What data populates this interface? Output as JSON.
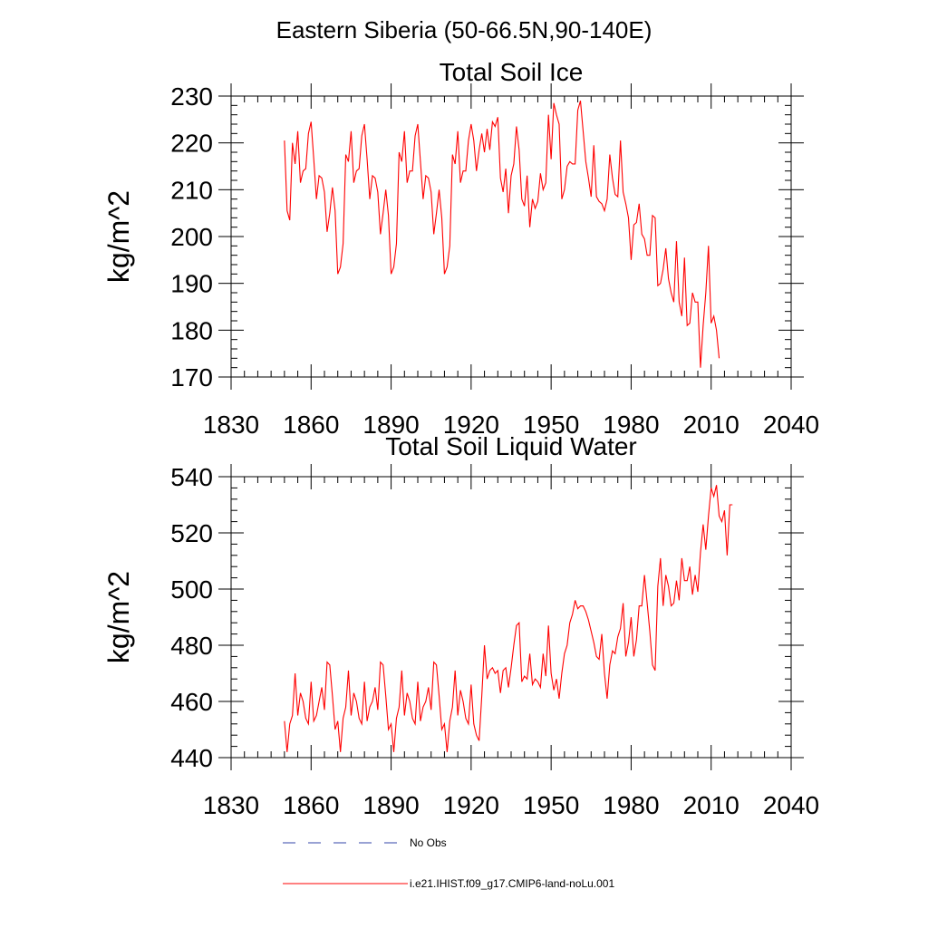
{
  "page_title": "Eastern Siberia (50-66.5N,90-140E)",
  "colors": {
    "model": "#ff0000",
    "obs": "#3344aa",
    "axis": "#000000"
  },
  "chart_data": [
    {
      "type": "line",
      "title": "Total Soil Ice",
      "xlabel": "",
      "ylabel": "kg/m^2",
      "xlim": [
        1830,
        2040
      ],
      "ylim": [
        170,
        230
      ],
      "xticks": [
        1830,
        1860,
        1890,
        1920,
        1950,
        1980,
        2010,
        2040
      ],
      "yticks": [
        170,
        180,
        190,
        200,
        210,
        220,
        230
      ],
      "grid": false,
      "series": [
        {
          "name": "i.e21.IHIST.f09_g17.CMIP6-land-noLu.001",
          "x_start": 1850,
          "x_step": 1,
          "values": [
            220.5,
            205.5,
            203.5,
            220.0,
            215.5,
            222.5,
            211.5,
            214.0,
            214.5,
            222.0,
            224.5,
            216.5,
            208.0,
            213.0,
            212.5,
            209.5,
            201.0,
            205.0,
            210.5,
            205.5,
            192.0,
            193.5,
            198.5,
            217.5,
            216.0,
            222.5,
            211.5,
            214.0,
            214.5,
            221.5,
            224.0,
            216.5,
            208.0,
            213.0,
            212.5,
            209.5,
            200.5,
            205.0,
            210.0,
            204.5,
            192.0,
            193.5,
            198.5,
            218.0,
            216.0,
            222.5,
            211.5,
            214.0,
            214.0,
            221.5,
            224.0,
            216.0,
            208.0,
            213.0,
            212.5,
            209.5,
            200.5,
            205.0,
            210.0,
            204.0,
            192.0,
            193.5,
            198.0,
            217.5,
            215.5,
            222.5,
            211.5,
            214.0,
            214.0,
            220.5,
            224.0,
            220.5,
            214.0,
            218.5,
            222.0,
            218.0,
            223.0,
            218.5,
            224.5,
            223.5,
            225.5,
            212.5,
            209.5,
            214.5,
            205.0,
            213.0,
            215.5,
            223.5,
            218.5,
            208.0,
            206.5,
            213.0,
            202.0,
            208.0,
            206.0,
            207.5,
            213.5,
            210.0,
            211.5,
            226.0,
            216.5,
            228.5,
            226.0,
            224.0,
            208.0,
            210.0,
            215.0,
            216.0,
            215.5,
            215.5,
            227.0,
            229.0,
            222.5,
            216.0,
            212.5,
            208.5,
            219.5,
            208.5,
            207.5,
            207.0,
            205.5,
            208.0,
            217.5,
            212.5,
            209.0,
            208.5,
            220.5,
            209.5,
            207.0,
            204.0,
            195.0,
            202.5,
            203.0,
            207.0,
            200.5,
            199.5,
            196.0,
            196.0,
            204.5,
            204.0,
            189.5,
            190.0,
            193.0,
            197.5,
            191.0,
            188.0,
            186.0,
            199.0,
            186.0,
            183.0,
            195.5,
            181.0,
            181.5,
            188.0,
            186.0,
            186.0,
            172.0,
            181.0,
            188.0,
            198.0,
            181.5,
            183.0,
            180.0,
            174.0
          ]
        }
      ]
    },
    {
      "type": "line",
      "title": "Total Soil Liquid Water",
      "xlabel": "",
      "ylabel": "kg/m^2",
      "xlim": [
        1830,
        2040
      ],
      "ylim": [
        440,
        540
      ],
      "xticks": [
        1830,
        1860,
        1890,
        1920,
        1950,
        1980,
        2010,
        2040
      ],
      "yticks": [
        440,
        460,
        480,
        500,
        520,
        540
      ],
      "grid": false,
      "series": [
        {
          "name": "i.e21.IHIST.f09_g17.CMIP6-land-noLu.001",
          "x_start": 1850,
          "x_step": 1,
          "values": [
            453,
            442,
            452,
            455,
            470,
            455,
            463,
            460,
            454,
            452,
            467,
            453,
            455,
            460,
            465,
            457,
            474,
            473,
            462,
            450,
            453,
            442,
            454,
            458,
            471,
            455,
            463,
            460,
            454,
            452,
            467,
            453,
            458,
            460,
            465,
            457,
            474,
            473,
            462,
            450,
            452,
            442,
            454,
            458,
            471,
            455,
            463,
            460,
            454,
            452,
            467,
            453,
            458,
            460,
            465,
            457,
            474,
            473,
            462,
            450,
            452,
            442,
            453,
            458,
            471,
            455,
            464,
            460,
            454,
            452,
            466,
            452,
            448,
            446,
            462,
            480,
            468,
            471,
            472,
            470,
            471,
            463,
            471,
            472,
            465,
            472,
            480,
            487,
            488,
            467,
            469,
            468,
            477,
            466,
            468,
            467,
            465,
            477,
            469,
            487,
            470,
            464,
            468,
            461,
            470,
            477,
            480,
            488,
            491,
            496,
            493,
            494,
            494,
            492,
            489,
            485,
            481,
            476,
            475,
            484,
            470,
            461,
            473,
            478,
            477,
            483,
            486,
            495,
            476,
            481,
            490,
            476,
            482,
            494,
            494,
            505,
            495,
            485,
            473,
            471,
            501,
            511,
            494,
            505,
            501,
            494,
            495,
            503,
            496,
            511,
            503,
            503,
            508,
            498,
            505,
            499,
            513,
            523,
            514,
            526,
            536,
            533,
            537,
            526,
            524,
            528,
            512,
            530,
            530
          ]
        }
      ]
    }
  ],
  "legend": {
    "placement": "bottom",
    "items": [
      {
        "label": "No Obs",
        "style": "dashed"
      },
      {
        "label": "i.e21.IHIST.f09_g17.CMIP6-land-noLu.001",
        "style": "solid"
      }
    ]
  }
}
